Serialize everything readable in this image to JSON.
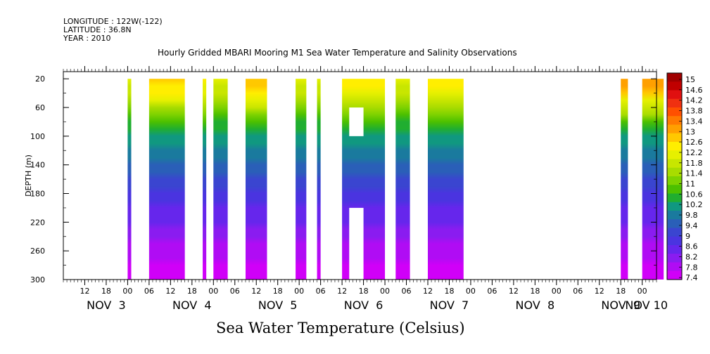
{
  "header": {
    "longitude": "LONGITUDE : 122W(-122)",
    "latitude": "LATITUDE : 36.8N",
    "year": "YEAR : 2010"
  },
  "chart_data": {
    "type": "heatmap",
    "title": "Hourly Gridded MBARI Mooring M1 Sea Water Temperature and Salinity Observations",
    "xlabel": "Sea Water Temperature (Celsius)",
    "ylabel": "DEPTH (m)",
    "x_units": "hours since Nov 3 00:00, 2010",
    "xlim_hours": [
      6,
      172
    ],
    "ylim": [
      300,
      10
    ],
    "y_ticks": [
      20,
      60,
      100,
      140,
      180,
      220,
      260,
      300
    ],
    "x_hour_ticks": [
      "12",
      "18",
      "00",
      "06",
      "12",
      "18",
      "00",
      "06",
      "12",
      "18",
      "00",
      "06",
      "12",
      "18",
      "00",
      "06",
      "12",
      "18",
      "00",
      "06",
      "12",
      "18",
      "00",
      "06",
      "12",
      "18",
      "00",
      "06",
      "12",
      "18",
      "00",
      "06"
    ],
    "x_day_labels": [
      "NOV  3",
      "NOV  4",
      "NOV  5",
      "NOV  6",
      "NOV  7",
      "NOV  8",
      "NOV  9",
      "NOV 10"
    ],
    "colorbar_levels": [
      "15",
      "14.6",
      "14.2",
      "13.8",
      "13.4",
      "13",
      "12.6",
      "12.2",
      "11.8",
      "11.4",
      "11",
      "10.6",
      "10.2",
      "9.8",
      "9.4",
      "9",
      "8.6",
      "8.2",
      "7.8",
      "7.4"
    ],
    "colorbar_colors": [
      "#a00000",
      "#c00000",
      "#e01010",
      "#f03010",
      "#ff5000",
      "#ff7a00",
      "#ffa000",
      "#ffc800",
      "#ffee00",
      "#e6f000",
      "#c8e600",
      "#a8dc00",
      "#7ed200",
      "#4cc000",
      "#20ae30",
      "#109880",
      "#1a7a9e",
      "#2a5fb8",
      "#3a45d0",
      "#4a34e0",
      "#6626ec",
      "#8a1cf0",
      "#b00cf4",
      "#d000f8"
    ],
    "colorbar_range": [
      7.4,
      15.2
    ],
    "temperature_profile": {
      "depth": [
        20,
        40,
        60,
        80,
        100,
        120,
        140,
        160,
        180,
        200,
        220,
        240,
        260,
        280,
        300
      ],
      "temp": [
        12.1,
        11.8,
        11.2,
        10.6,
        10.2,
        9.9,
        9.6,
        9.3,
        9.0,
        8.7,
        8.4,
        8.1,
        7.9,
        7.7,
        7.5
      ]
    },
    "data_segments": [
      {
        "start": 24,
        "end": 25,
        "surface": 12.0
      },
      {
        "start": 30,
        "end": 40,
        "surface": 12.8
      },
      {
        "start": 45,
        "end": 46,
        "surface": 12.3
      },
      {
        "start": 48,
        "end": 52,
        "surface": 12.0
      },
      {
        "start": 57,
        "end": 63,
        "surface": 12.9
      },
      {
        "start": 71,
        "end": 74,
        "surface": 12.0
      },
      {
        "start": 77,
        "end": 78,
        "surface": 12.0
      },
      {
        "start": 84,
        "end": 96,
        "surface": 12.5
      },
      {
        "start": 99,
        "end": 103,
        "surface": 12.1
      },
      {
        "start": 108,
        "end": 118,
        "surface": 12.5
      },
      {
        "start": 162,
        "end": 164,
        "surface": 13.2
      },
      {
        "start": 168,
        "end": 174,
        "surface": 13.2
      }
    ],
    "data_gaps": [
      {
        "start": 86,
        "end": 90,
        "depth_top": 60,
        "depth_bottom": 100
      },
      {
        "start": 86,
        "end": 90,
        "depth_top": 200,
        "depth_bottom": 300
      }
    ]
  }
}
